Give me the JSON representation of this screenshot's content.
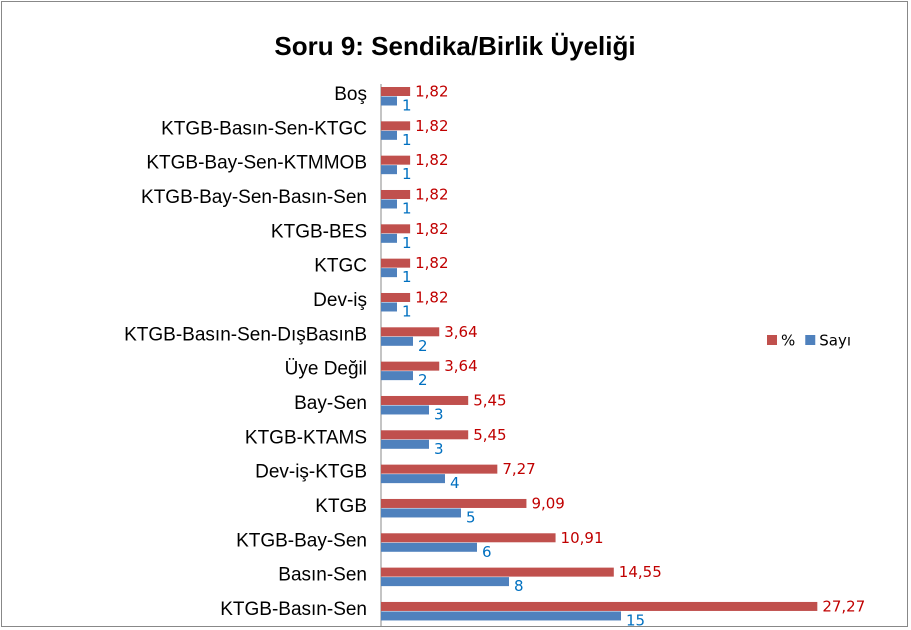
{
  "chart_data": {
    "type": "barh",
    "title": "Soru 9: Sendika/Birlik Üyeliği",
    "categories": [
      "Boş",
      "KTGB-Basın-Sen-KTGC",
      "KTGB-Bay-Sen-KTMMOB",
      "KTGB-Bay-Sen-Basın-Sen",
      "KTGB-BES",
      "KTGC",
      "Dev-iş",
      "KTGB-Basın-Sen-DışBasınB",
      "Üye Değil",
      "Bay-Sen",
      "KTGB-KTAMS",
      "Dev-iş-KTGB",
      "KTGB",
      "KTGB-Bay-Sen",
      "Basın-Sen",
      "KTGB-Basın-Sen"
    ],
    "series": [
      {
        "name": "%",
        "color": "#c0504d",
        "values": [
          1.82,
          1.82,
          1.82,
          1.82,
          1.82,
          1.82,
          1.82,
          3.64,
          3.64,
          5.45,
          5.45,
          7.27,
          9.09,
          10.91,
          14.55,
          27.27
        ],
        "value_labels": [
          "1,82",
          "1,82",
          "1,82",
          "1,82",
          "1,82",
          "1,82",
          "1,82",
          "3,64",
          "3,64",
          "5,45",
          "5,45",
          "7,27",
          "9,09",
          "10,91",
          "14,55",
          "27,27"
        ]
      },
      {
        "name": "Sayı",
        "color": "#4f81bd",
        "values": [
          1,
          1,
          1,
          1,
          1,
          1,
          1,
          2,
          2,
          3,
          3,
          4,
          5,
          6,
          8,
          15
        ]
      }
    ],
    "xlim": [
      0,
      32
    ],
    "legend": "right"
  }
}
